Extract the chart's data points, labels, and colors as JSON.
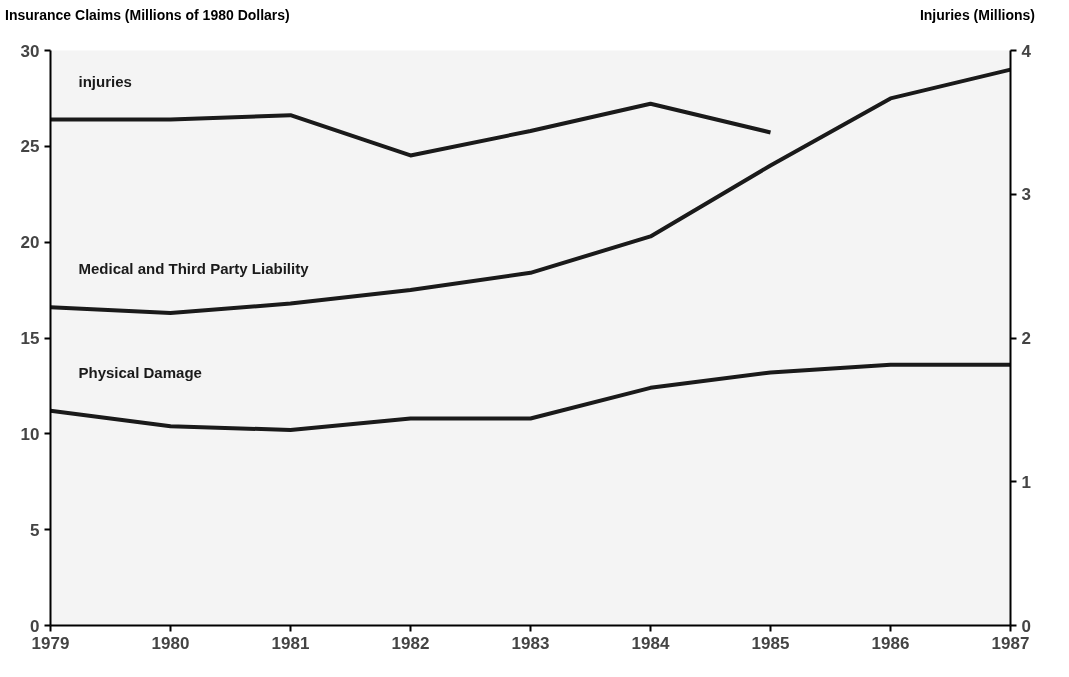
{
  "chart_data": {
    "type": "line",
    "ylabel": "Insurance Claims (Millions of 1980 Dollars)",
    "y2label": "Injuries (Millions)",
    "x": [
      1979,
      1980,
      1981,
      1982,
      1983,
      1984,
      1985,
      1986,
      1987
    ],
    "xlim": [
      1979,
      1987
    ],
    "xticks": [
      1979,
      1980,
      1981,
      1982,
      1983,
      1984,
      1985,
      1986,
      1987
    ],
    "ylim": [
      0,
      30
    ],
    "yticks": [
      0,
      5,
      10,
      15,
      20,
      25,
      30
    ],
    "y2lim": [
      0,
      4
    ],
    "y2ticks": [
      0,
      1,
      2,
      3,
      4
    ],
    "grid": false,
    "marker": "none",
    "line_style": "solid",
    "series": [
      {
        "name": "injuries",
        "color": "#1a1a1a",
        "axis": "y2",
        "values": [
          3.52,
          3.52,
          3.55,
          3.27,
          3.44,
          3.63,
          3.43,
          null,
          null
        ]
      },
      {
        "name": "Medical and Third Party Liability",
        "color": "#1a1a1a",
        "values": [
          16.6,
          16.3,
          16.8,
          17.5,
          18.4,
          20.3,
          24.0,
          27.5,
          29.0
        ]
      },
      {
        "name": "Physical Damage",
        "color": "#1a1a1a",
        "values": [
          11.2,
          10.4,
          10.2,
          10.8,
          10.8,
          12.4,
          13.2,
          13.6,
          13.6
        ]
      }
    ]
  }
}
